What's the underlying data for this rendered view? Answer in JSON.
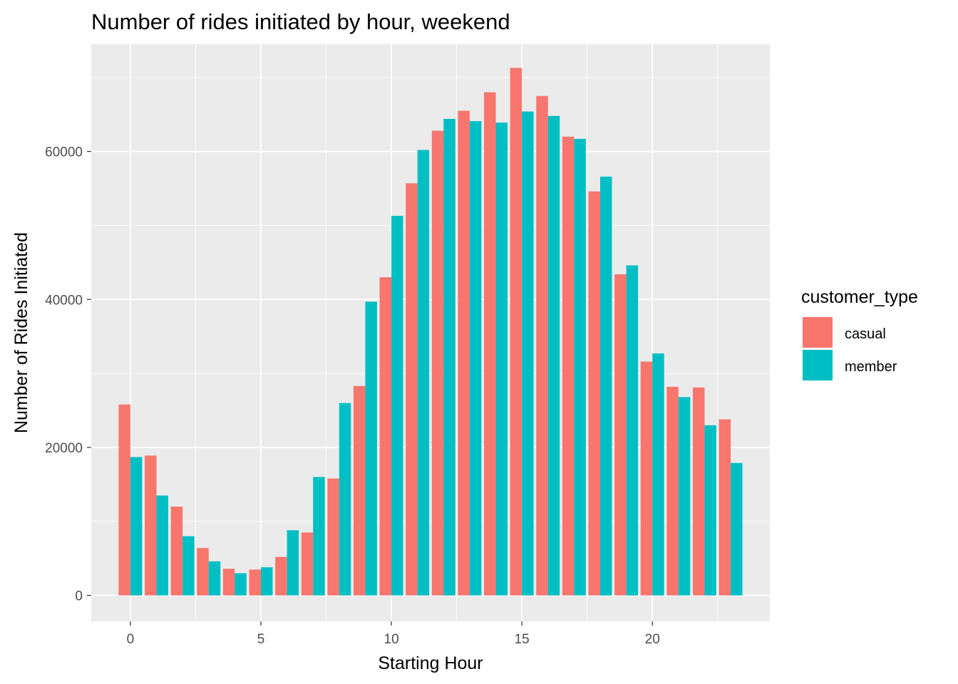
{
  "chart_data": {
    "type": "bar",
    "title": "Number of rides initiated by hour, weekend",
    "xlabel": "Starting Hour",
    "ylabel": "Number of Rides Initiated",
    "x": [
      0,
      1,
      2,
      3,
      4,
      5,
      6,
      7,
      8,
      9,
      10,
      11,
      12,
      13,
      14,
      15,
      16,
      17,
      18,
      19,
      20,
      21,
      22,
      23
    ],
    "xticks": [
      0,
      5,
      10,
      15,
      20
    ],
    "xtick_labels": [
      "0",
      "5",
      "10",
      "15",
      "20"
    ],
    "yticks": [
      0,
      20000,
      40000,
      60000
    ],
    "ytick_labels": [
      "0",
      "20000",
      "40000",
      "60000"
    ],
    "ylim": [
      -3500,
      74500
    ],
    "xlim": [
      -1.5,
      24.5
    ],
    "grid": true,
    "legend": {
      "title": "customer_type",
      "position": "right"
    },
    "series": [
      {
        "name": "casual",
        "color": "#F8766D",
        "values": [
          25800,
          18900,
          12000,
          6400,
          3600,
          3500,
          5200,
          8500,
          15800,
          28300,
          43000,
          55700,
          62800,
          65500,
          68000,
          71300,
          67500,
          62000,
          54600,
          43400,
          31600,
          28200,
          28100,
          23800
        ]
      },
      {
        "name": "member",
        "color": "#00BFC4",
        "values": [
          18700,
          13500,
          8000,
          4600,
          3000,
          3800,
          8800,
          16000,
          26000,
          39700,
          51300,
          60200,
          64400,
          64100,
          63900,
          65400,
          64800,
          61700,
          56600,
          44600,
          32700,
          26800,
          23000,
          17900
        ]
      }
    ]
  }
}
